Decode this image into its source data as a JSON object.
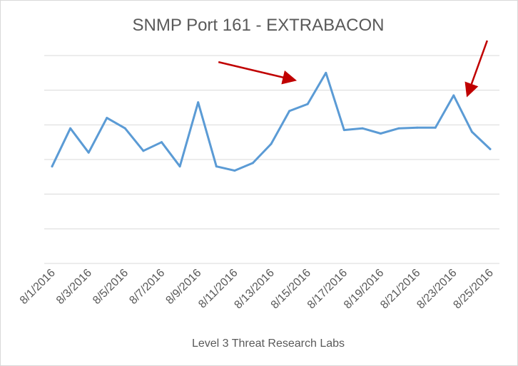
{
  "chart_data": {
    "type": "line",
    "title": "SNMP Port 161 -  EXTRABACON",
    "xlabel": "Level 3 Threat Research Labs",
    "ylabel": "",
    "y_axis_labels_shown": false,
    "grid": "horizontal",
    "legend": "none",
    "ylim": [
      0,
      6
    ],
    "categories": [
      "8/1/2016",
      "8/2/2016",
      "8/3/2016",
      "8/4/2016",
      "8/5/2016",
      "8/6/2016",
      "8/7/2016",
      "8/8/2016",
      "8/9/2016",
      "8/10/2016",
      "8/11/2016",
      "8/12/2016",
      "8/13/2016",
      "8/14/2016",
      "8/15/2016",
      "8/16/2016",
      "8/17/2016",
      "8/18/2016",
      "8/19/2016",
      "8/20/2016",
      "8/21/2016",
      "8/22/2016",
      "8/23/2016",
      "8/24/2016",
      "8/25/2016"
    ],
    "tick_labels": [
      "8/1/2016",
      "8/3/2016",
      "8/5/2016",
      "8/7/2016",
      "8/9/2016",
      "8/11/2016",
      "8/13/2016",
      "8/15/2016",
      "8/17/2016",
      "8/19/2016",
      "8/21/2016",
      "8/23/2016",
      "8/25/2016"
    ],
    "series": [
      {
        "color": "#5b9bd5",
        "values": [
          2.8,
          3.9,
          3.2,
          4.2,
          3.9,
          3.25,
          3.5,
          2.8,
          4.65,
          2.8,
          2.68,
          2.9,
          3.45,
          4.4,
          4.6,
          5.5,
          3.85,
          3.9,
          3.75,
          3.9,
          3.92,
          3.92,
          4.85,
          3.8,
          3.3
        ]
      }
    ],
    "annotations": [
      {
        "type": "arrow",
        "color": "#c00000",
        "points_to": "8/15/2016"
      },
      {
        "type": "arrow",
        "color": "#c00000",
        "points_to": "8/23/2016"
      }
    ]
  }
}
